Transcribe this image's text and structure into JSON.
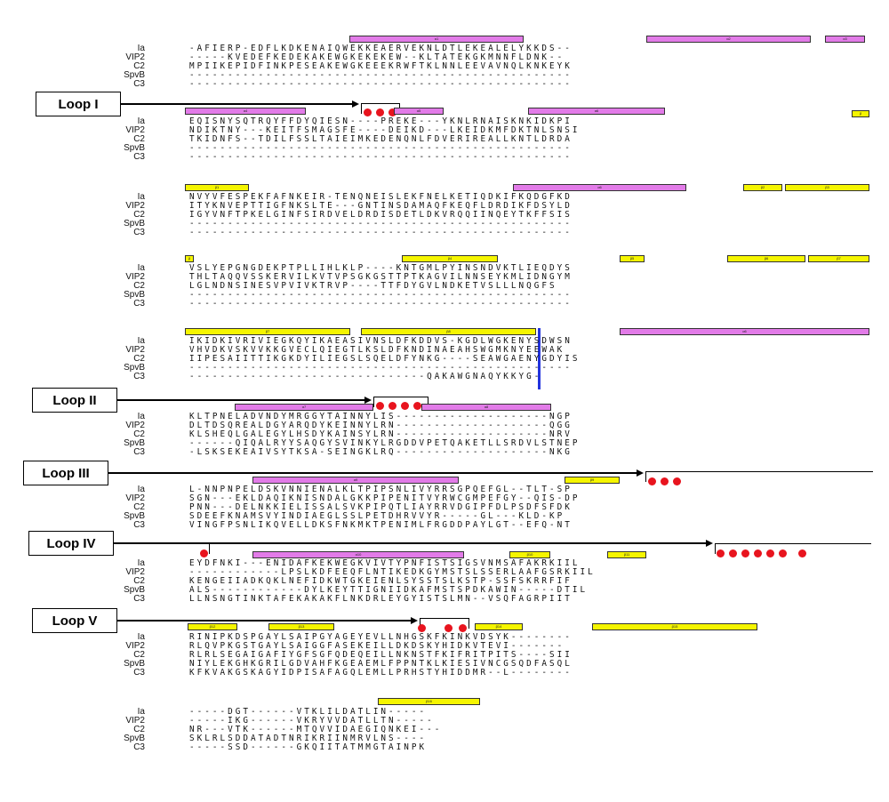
{
  "loops": [
    {
      "label": "Loop I"
    },
    {
      "label": "Loop II"
    },
    {
      "label": "Loop III"
    },
    {
      "label": "Loop IV"
    },
    {
      "label": "Loop V"
    }
  ],
  "blocks": [
    {
      "rows": [
        {
          "name": "Ia",
          "seq": "-AFIERP-EDFLKDKENAIQWEKKEAERVEKNLDTLEKEALELYKKDS--"
        },
        {
          "name": "VIP2",
          "seq": "-----KVEDEFKEDEKAKEWGKEKEKEW--KLTATEKGKMNNFLDNK--"
        },
        {
          "name": "C2",
          "seq": "MPIIKEPIDFINKPESEAKEWGKEEEKRWFTKLNNLEEVAVNQLKNKEYK"
        },
        {
          "name": "SpvB",
          "seq": "--------------------------------------------------"
        },
        {
          "name": "C3",
          "seq": "--------------------------------------------------"
        }
      ],
      "helices": [
        "α1",
        "α2",
        "α3"
      ],
      "strands": []
    },
    {
      "rows": [
        {
          "name": "Ia",
          "seq": "EQISNYSQTRQYFFDYQIESN----PREKE---YKNLRNAISKNKIDKPI"
        },
        {
          "name": "VIP2",
          "seq": "NDIKTNY---KEITFSMAGSFE----DEIKD---LKEIDKMFDKTNLSNSI"
        },
        {
          "name": "C2",
          "seq": "TKIDNFS--TDILFSSLTAIEIMKEDENQNLFDVERIREALLKNTLDRDA"
        },
        {
          "name": "SpvB",
          "seq": "--------------------------------------------------"
        },
        {
          "name": "C3",
          "seq": "--------------------------------------------------"
        }
      ],
      "helices": [
        "α4",
        "α5",
        "α6"
      ],
      "strands": [
        "β"
      ]
    },
    {
      "rows": [
        {
          "name": "Ia",
          "seq": "NVYVFESPEKFAFNKEIR-TENQNEISLEKFNELKETIQDKIFKQDGFKD"
        },
        {
          "name": "VIP2",
          "seq": "ITYKNVEPTTIGFNKSLTE---GNTINSDAMAQFKEQFLDRDIKFDSYLD"
        },
        {
          "name": "C2",
          "seq": "IGYVNFTPKELGINFSIRDVELDRDISDETLDKVRQQIINQEYTKFFSIS"
        },
        {
          "name": "SpvB",
          "seq": "--------------------------------------------------"
        },
        {
          "name": "C3",
          "seq": "--------------------------------------------------"
        }
      ],
      "helices": [
        "α6"
      ],
      "strands": [
        "β1",
        "β2",
        "β3"
      ]
    },
    {
      "rows": [
        {
          "name": "Ia",
          "seq": "VSLYEPGNGDEKPTPLLIHLKLP----KNTGMLPYINSNDVKTLIEQDYS"
        },
        {
          "name": "VIP2",
          "seq": "THLTAQQVSSKERVILKVTVPSGKGSTTPTKAGVILNNSEYKMLIDNGYM"
        },
        {
          "name": "C2",
          "seq": "LGLNDNSINESVPVIVKTRVP----TTFDYGVLNDKETVSLLLNQGFS"
        },
        {
          "name": "SpvB",
          "seq": "--------------------------------------------------"
        },
        {
          "name": "C3",
          "seq": "--------------------------------------------------"
        }
      ],
      "helices": [],
      "strands": [
        "β",
        "β4",
        "β5",
        "β6",
        "β7"
      ]
    },
    {
      "rows": [
        {
          "name": "Ia",
          "seq": "IKIDKIVRIVIEGKQYIKAEASIVNSLDFKDDVS-KGDLWGKENYSDWSN"
        },
        {
          "name": "VIP2",
          "seq": "VHVDKVSKVVKKGVECLQIEGTLKSLDFKNDINAEAHSWGMKNYEEWAK"
        },
        {
          "name": "C2",
          "seq": "IIPESAIITTIKGKDYILIEGSLSQELDFYNKG----SEAWGAENYGDYIS"
        },
        {
          "name": "SpvB",
          "seq": "--------------------------------------------------"
        },
        {
          "name": "C3",
          "seq": "-------------------------------QAKAWGNAQYKKYG-"
        }
      ],
      "helices": [
        "α6"
      ],
      "strands": [
        "β7",
        "β8"
      ]
    },
    {
      "rows": [
        {
          "name": "Ia",
          "seq": "KLTPNELADVNDYMRGGYTAINNYLIS--------------------NGP"
        },
        {
          "name": "VIP2",
          "seq": "DLTDSQREALDGYARQDYKEINNYLRN--------------------QGG"
        },
        {
          "name": "C2",
          "seq": "KLSHEQLGALEGYLHSDYKAINSYLRN--------------------NRV"
        },
        {
          "name": "SpvB",
          "seq": "------QIQALRYYSAQGYSVINKYLRGDDVPETQAKETLLSRDVLSTNEP"
        },
        {
          "name": "C3",
          "seq": "-LSKSEKEAIVSYTKSA-SEINGKLRQ--------------------NKG"
        }
      ],
      "helices": [
        "α7",
        "α8"
      ],
      "strands": []
    },
    {
      "rows": [
        {
          "name": "Ia",
          "seq": "L-NNPNPELDSKVNNIENALKLTPIPSNLIVYRRSGPQEFGL--TLT-SP"
        },
        {
          "name": "VIP2",
          "seq": "SGN---EKLDAQIKNISNDALGKKPIPENITVYRWCGMPEFGY--QIS-DP"
        },
        {
          "name": "C2",
          "seq": "PNN---DELNKKIELISSALSVKPIPQTLIAYRRVDGIPFDLPSDFSFDK"
        },
        {
          "name": "SpvB",
          "seq": "SDEEFKNAMSVYINDIAEGLSSLPETDHRVVYR-----GL---KLD-KP"
        },
        {
          "name": "C3",
          "seq": "VINGFPSNLIKQVELLDKSFNKMKTPENIMLFRGDDPAYLGT--EFQ-NT"
        }
      ],
      "helices": [
        "α9"
      ],
      "strands": [
        "β9"
      ]
    },
    {
      "rows": [
        {
          "name": "Ia",
          "seq": "EYDFNKI---ENIDAFKEKWEGKVIVTYPNFISTSIGSVNMSAFAKRKIIL"
        },
        {
          "name": "VIP2",
          "seq": "------------LPSLKDFEEQFLNTIKEDKGYMSTSLSSERLAAFGSRKIIL"
        },
        {
          "name": "C2",
          "seq": "KENGEIIADKQKLNEFIDKWTGKEIENLSYSSTSLKSTP-SSFSKRRFIF"
        },
        {
          "name": "SpvB",
          "seq": "ALS------------DYLKEYTTIGNIIDKAFMSTSPDKAWIN-----DTIL"
        },
        {
          "name": "C3",
          "seq": "LLNSNGTINKTAFEKAKAKFLNKDRLEYGYISTSLMN--VSQFAGRPIIT"
        }
      ],
      "helices": [
        "α10"
      ],
      "strands": [
        "β10",
        "β11"
      ]
    },
    {
      "rows": [
        {
          "name": "Ia",
          "seq": "RINIPKDSPGAYLSAIPGYAGEYEVLLNHGSKFKINKVDSYK--------"
        },
        {
          "name": "VIP2",
          "seq": "RLQVPKGSTGAYLSAIGGFASEKEILLDKDSKYHIDKVTEVI-------"
        },
        {
          "name": "C2",
          "seq": "RLRLSEGAIGAFIYGFSGFQDEQEILLNKNSTFKIFRITPITS----SII"
        },
        {
          "name": "SpvB",
          "seq": "NIYLEKGHKGRILGDVAHFKGEAEMLFPPNTKLKIESIVNCGSQDFASQL"
        },
        {
          "name": "C3",
          "seq": "KFKVAKGSKAGYIDPISAFAGQLEMLLPRHSTYHIDDMR--L--------"
        }
      ],
      "helices": [],
      "strands": [
        "β12",
        "β13",
        "β14",
        "β15"
      ]
    },
    {
      "rows": [
        {
          "name": "Ia",
          "seq": "-----DGT------VTKLILDATLIN-----"
        },
        {
          "name": "VIP2",
          "seq": "-----IKG------VKRYVVDATLLTN-----"
        },
        {
          "name": "C2",
          "seq": "NR---VTK------MTQVVIDAEGIQNKEI---"
        },
        {
          "name": "SpvB",
          "seq": "SKLRLSDDATADTNRIKRIINMRVLNS----"
        },
        {
          "name": "C3",
          "seq": "-----SSD------GKQIITATMMGTAINPK"
        }
      ],
      "helices": [],
      "strands": [
        "β16"
      ]
    }
  ]
}
